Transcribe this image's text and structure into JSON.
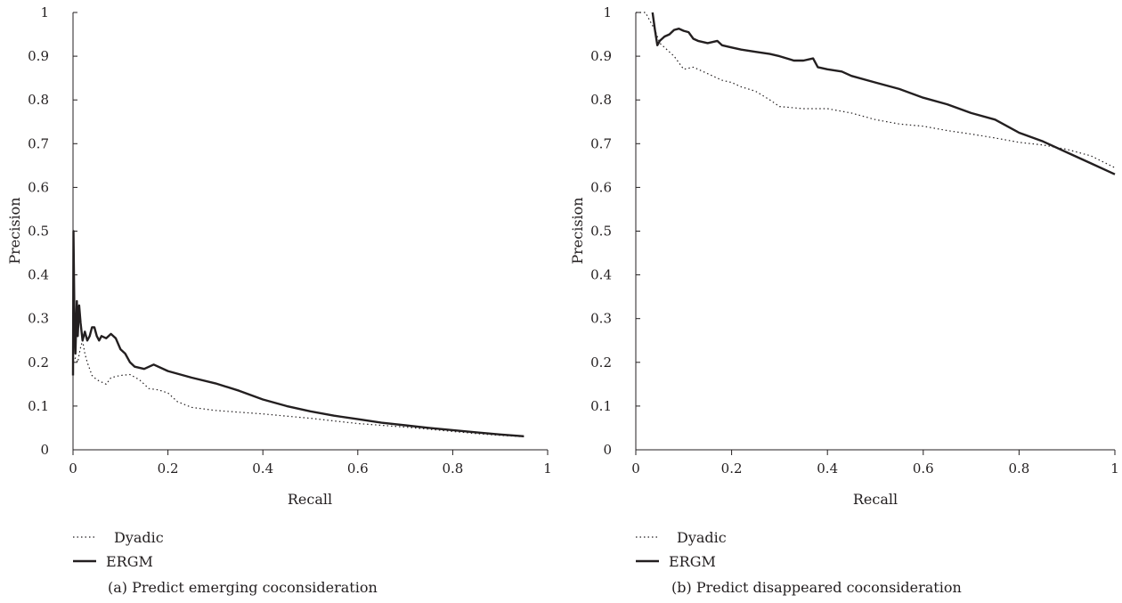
{
  "chart_data": [
    {
      "type": "line",
      "caption": "(a)  Predict emerging coconsideration",
      "xlabel": "Recall",
      "ylabel": "Precision",
      "xlim": [
        0,
        1
      ],
      "ylim": [
        0,
        1
      ],
      "xticks": [
        "0",
        "0.2",
        "0.4",
        "0.6",
        "0.8",
        "1"
      ],
      "yticks": [
        "0",
        "0.1",
        "0.2",
        "0.3",
        "0.4",
        "0.5",
        "0.6",
        "0.7",
        "0.8",
        "0.9",
        "1"
      ],
      "grid": false,
      "legend_position": "bottom-left",
      "series": [
        {
          "name": "Dyadic",
          "style": "dotted",
          "x": [
            0.0,
            0.005,
            0.01,
            0.015,
            0.02,
            0.025,
            0.03,
            0.04,
            0.05,
            0.06,
            0.07,
            0.08,
            0.1,
            0.12,
            0.14,
            0.16,
            0.18,
            0.2,
            0.22,
            0.25,
            0.3,
            0.35,
            0.4,
            0.45,
            0.5,
            0.55,
            0.6,
            0.65,
            0.7,
            0.75,
            0.8,
            0.85,
            0.9,
            0.95
          ],
          "y": [
            0.2,
            0.21,
            0.2,
            0.23,
            0.25,
            0.22,
            0.2,
            0.17,
            0.16,
            0.155,
            0.15,
            0.165,
            0.17,
            0.172,
            0.16,
            0.14,
            0.137,
            0.13,
            0.11,
            0.097,
            0.09,
            0.086,
            0.082,
            0.077,
            0.072,
            0.066,
            0.06,
            0.056,
            0.052,
            0.047,
            0.042,
            0.037,
            0.033,
            0.03
          ]
        },
        {
          "name": "ERGM",
          "style": "solid",
          "x": [
            0.0,
            0.001,
            0.003,
            0.005,
            0.008,
            0.01,
            0.013,
            0.016,
            0.02,
            0.025,
            0.03,
            0.035,
            0.04,
            0.045,
            0.05,
            0.055,
            0.06,
            0.07,
            0.08,
            0.09,
            0.1,
            0.11,
            0.12,
            0.13,
            0.15,
            0.17,
            0.2,
            0.25,
            0.3,
            0.35,
            0.4,
            0.45,
            0.5,
            0.55,
            0.6,
            0.65,
            0.7,
            0.75,
            0.8,
            0.85,
            0.9,
            0.95
          ],
          "y": [
            0.17,
            0.5,
            0.3,
            0.22,
            0.34,
            0.26,
            0.33,
            0.29,
            0.25,
            0.27,
            0.25,
            0.26,
            0.28,
            0.28,
            0.26,
            0.25,
            0.26,
            0.255,
            0.265,
            0.255,
            0.23,
            0.22,
            0.2,
            0.19,
            0.185,
            0.195,
            0.18,
            0.165,
            0.152,
            0.135,
            0.115,
            0.1,
            0.088,
            0.078,
            0.07,
            0.062,
            0.056,
            0.05,
            0.045,
            0.04,
            0.035,
            0.031
          ]
        }
      ]
    },
    {
      "type": "line",
      "caption": "(b)  Predict disappeared coconsideration",
      "xlabel": "Recall",
      "ylabel": "Precision",
      "xlim": [
        0,
        1
      ],
      "ylim": [
        0,
        1
      ],
      "xticks": [
        "0",
        "0.2",
        "0.4",
        "0.6",
        "0.8",
        "1"
      ],
      "yticks": [
        "0",
        "0.1",
        "0.2",
        "0.3",
        "0.4",
        "0.5",
        "0.6",
        "0.7",
        "0.8",
        "0.9",
        "1"
      ],
      "grid": false,
      "legend_position": "bottom-left",
      "series": [
        {
          "name": "Dyadic",
          "style": "dotted",
          "x": [
            0.0,
            0.02,
            0.03,
            0.04,
            0.05,
            0.06,
            0.08,
            0.1,
            0.12,
            0.15,
            0.18,
            0.2,
            0.22,
            0.25,
            0.28,
            0.3,
            0.35,
            0.4,
            0.45,
            0.5,
            0.55,
            0.6,
            0.65,
            0.7,
            0.75,
            0.8,
            0.85,
            0.9,
            0.95,
            1.0
          ],
          "y": [
            1.0,
            1.0,
            0.98,
            0.96,
            0.93,
            0.92,
            0.9,
            0.87,
            0.875,
            0.86,
            0.845,
            0.84,
            0.83,
            0.82,
            0.8,
            0.785,
            0.78,
            0.78,
            0.77,
            0.755,
            0.745,
            0.74,
            0.73,
            0.722,
            0.713,
            0.703,
            0.697,
            0.687,
            0.672,
            0.645
          ]
        },
        {
          "name": "ERGM",
          "style": "solid",
          "x": [
            0.035,
            0.04,
            0.045,
            0.05,
            0.06,
            0.07,
            0.08,
            0.09,
            0.1,
            0.11,
            0.12,
            0.13,
            0.15,
            0.17,
            0.18,
            0.2,
            0.22,
            0.25,
            0.28,
            0.3,
            0.33,
            0.35,
            0.37,
            0.38,
            0.4,
            0.43,
            0.45,
            0.5,
            0.55,
            0.6,
            0.65,
            0.7,
            0.75,
            0.8,
            0.85,
            0.9,
            0.95,
            1.0
          ],
          "y": [
            1.0,
            0.96,
            0.925,
            0.935,
            0.945,
            0.95,
            0.96,
            0.963,
            0.958,
            0.955,
            0.94,
            0.935,
            0.93,
            0.935,
            0.925,
            0.92,
            0.915,
            0.91,
            0.905,
            0.9,
            0.89,
            0.89,
            0.895,
            0.875,
            0.87,
            0.865,
            0.855,
            0.84,
            0.825,
            0.805,
            0.79,
            0.77,
            0.755,
            0.725,
            0.705,
            0.68,
            0.655,
            0.63
          ]
        }
      ]
    }
  ]
}
